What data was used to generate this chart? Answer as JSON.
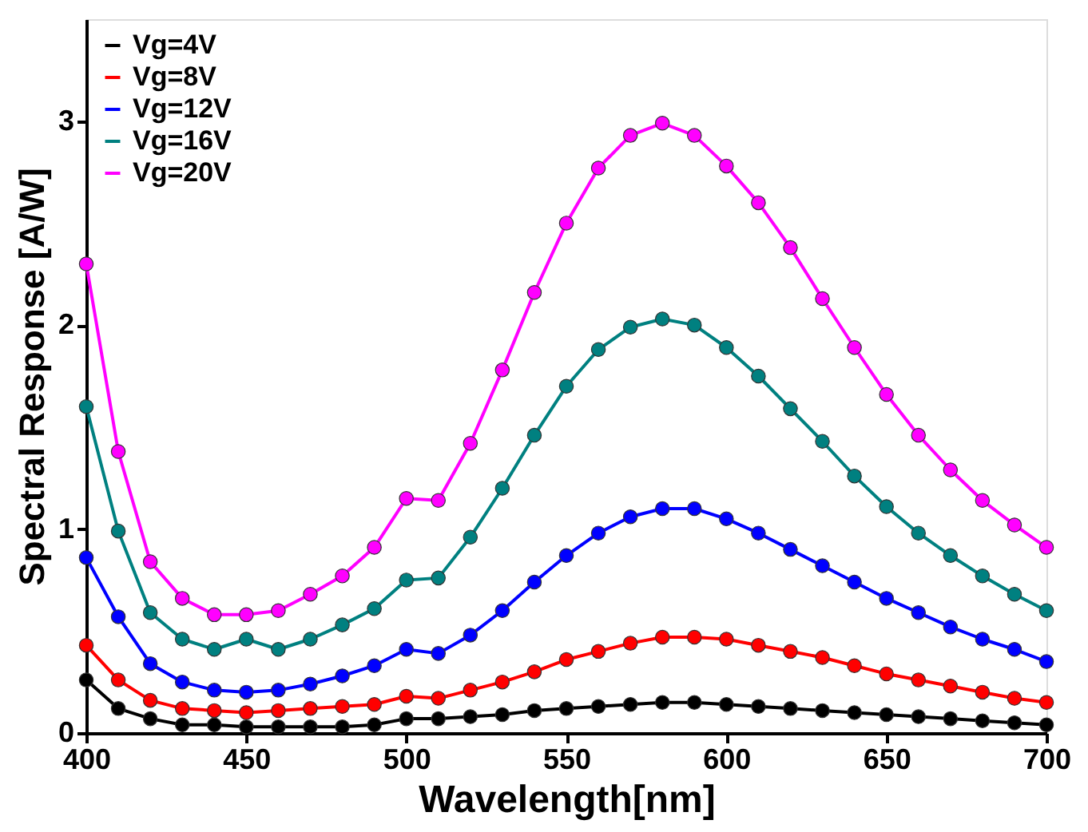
{
  "chart_data": {
    "type": "line",
    "xlabel": "Wavelength[nm]",
    "ylabel": "Spectral Response [A/W]",
    "x": [
      400,
      410,
      420,
      430,
      440,
      450,
      460,
      470,
      480,
      490,
      500,
      510,
      520,
      530,
      540,
      550,
      560,
      570,
      580,
      590,
      600,
      610,
      620,
      630,
      640,
      650,
      660,
      670,
      680,
      690,
      700
    ],
    "series": [
      {
        "name": "Vg=4V",
        "color": "#000000",
        "values": [
          0.26,
          0.12,
          0.07,
          0.04,
          0.04,
          0.03,
          0.03,
          0.03,
          0.03,
          0.04,
          0.07,
          0.07,
          0.08,
          0.09,
          0.11,
          0.12,
          0.13,
          0.14,
          0.15,
          0.15,
          0.14,
          0.13,
          0.12,
          0.11,
          0.1,
          0.09,
          0.08,
          0.07,
          0.06,
          0.05,
          0.04
        ]
      },
      {
        "name": "Vg=8V",
        "color": "#ff0000",
        "values": [
          0.43,
          0.26,
          0.16,
          0.12,
          0.11,
          0.1,
          0.11,
          0.12,
          0.13,
          0.14,
          0.18,
          0.17,
          0.21,
          0.25,
          0.3,
          0.36,
          0.4,
          0.44,
          0.47,
          0.47,
          0.46,
          0.43,
          0.4,
          0.37,
          0.33,
          0.29,
          0.26,
          0.23,
          0.2,
          0.17,
          0.15
        ]
      },
      {
        "name": "Vg=12V",
        "color": "#0000ff",
        "values": [
          0.86,
          0.57,
          0.34,
          0.25,
          0.21,
          0.2,
          0.21,
          0.24,
          0.28,
          0.33,
          0.41,
          0.39,
          0.48,
          0.6,
          0.74,
          0.87,
          0.98,
          1.06,
          1.1,
          1.1,
          1.05,
          0.98,
          0.9,
          0.82,
          0.74,
          0.66,
          0.59,
          0.52,
          0.46,
          0.41,
          0.35
        ]
      },
      {
        "name": "Vg=16V",
        "color": "#008080",
        "values": [
          1.6,
          0.99,
          0.59,
          0.46,
          0.41,
          0.46,
          0.41,
          0.46,
          0.53,
          0.61,
          0.75,
          0.76,
          0.96,
          1.2,
          1.46,
          1.7,
          1.88,
          1.99,
          2.03,
          2.0,
          1.89,
          1.75,
          1.59,
          1.43,
          1.26,
          1.11,
          0.98,
          0.87,
          0.77,
          0.68,
          0.6
        ]
      },
      {
        "name": "Vg=20V",
        "color": "#ff00ff",
        "values": [
          2.3,
          1.38,
          0.84,
          0.66,
          0.58,
          0.58,
          0.6,
          0.68,
          0.77,
          0.91,
          1.15,
          1.14,
          1.42,
          1.78,
          2.16,
          2.5,
          2.77,
          2.93,
          2.99,
          2.93,
          2.78,
          2.6,
          2.38,
          2.13,
          1.89,
          1.66,
          1.46,
          1.29,
          1.14,
          1.02,
          0.91
        ]
      }
    ],
    "xlim": [
      400,
      700
    ],
    "xticks": [
      400,
      450,
      500,
      550,
      600,
      650,
      700
    ],
    "ylim": [
      0,
      3.5
    ],
    "yticks": [
      0,
      1,
      2,
      3
    ],
    "grid": false,
    "legend": "top left",
    "marker": "circle",
    "line_style": "solid"
  }
}
